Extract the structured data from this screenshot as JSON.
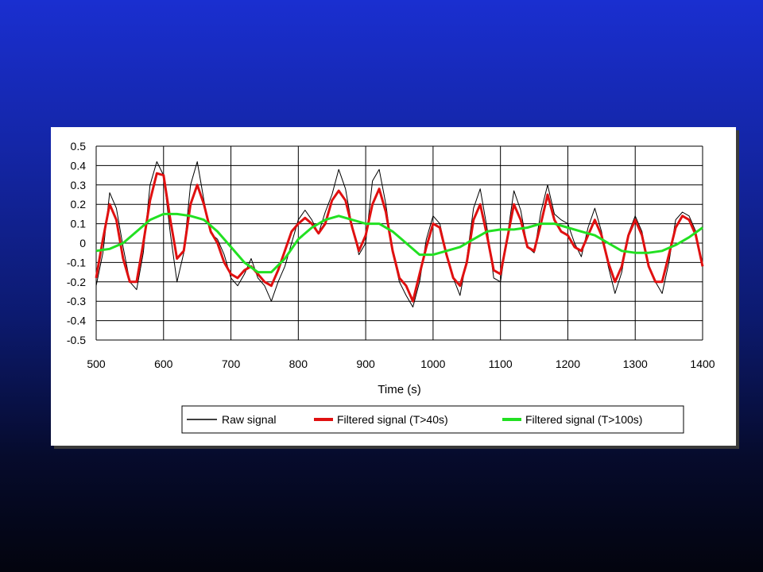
{
  "slide": {
    "background_top": "#1a2fd0",
    "background_bottom": "#03040e"
  },
  "chart_data": {
    "type": "line",
    "title": "",
    "xlabel": "Time (s)",
    "ylabel": "",
    "xlim": [
      500,
      1400
    ],
    "ylim": [
      -0.5,
      0.5
    ],
    "x_ticks": [
      500,
      600,
      700,
      800,
      900,
      1000,
      1100,
      1200,
      1300,
      1400
    ],
    "y_ticks": [
      0.5,
      0.4,
      0.3,
      0.2,
      0.1,
      0,
      -0.1,
      -0.2,
      -0.3,
      -0.4,
      -0.5
    ],
    "x_tick_labels": [
      "500",
      "600",
      "700",
      "800",
      "900",
      "1000",
      "1100",
      "1200",
      "1300",
      "1400"
    ],
    "y_tick_labels": [
      "0.5",
      "0.4",
      "0.3",
      "0.2",
      "0.1",
      "0",
      "-0.1",
      "-0.2",
      "-0.3",
      "-0.4",
      "-0.5"
    ],
    "grid": true,
    "legend_position": "bottom",
    "series": [
      {
        "name": "Raw signal",
        "color": "#000000",
        "x": [
          500,
          510,
          520,
          530,
          540,
          550,
          560,
          570,
          580,
          590,
          600,
          610,
          620,
          630,
          640,
          650,
          660,
          670,
          680,
          690,
          700,
          710,
          720,
          730,
          740,
          750,
          760,
          770,
          780,
          790,
          800,
          810,
          820,
          830,
          840,
          850,
          860,
          870,
          880,
          890,
          900,
          910,
          920,
          930,
          940,
          950,
          960,
          970,
          980,
          990,
          1000,
          1010,
          1020,
          1030,
          1040,
          1050,
          1060,
          1070,
          1080,
          1090,
          1100,
          1110,
          1120,
          1130,
          1140,
          1150,
          1160,
          1170,
          1180,
          1190,
          1200,
          1210,
          1220,
          1230,
          1240,
          1250,
          1260,
          1270,
          1280,
          1290,
          1300,
          1310,
          1320,
          1330,
          1340,
          1350,
          1360,
          1370,
          1380,
          1390,
          1400
        ],
        "values": [
          -0.22,
          -0.05,
          0.26,
          0.18,
          -0.02,
          -0.2,
          -0.24,
          -0.05,
          0.3,
          0.42,
          0.35,
          0.05,
          -0.2,
          -0.05,
          0.3,
          0.42,
          0.22,
          0.05,
          0.02,
          -0.06,
          -0.18,
          -0.22,
          -0.16,
          -0.08,
          -0.18,
          -0.22,
          -0.3,
          -0.2,
          -0.12,
          0.0,
          0.12,
          0.17,
          0.12,
          0.05,
          0.16,
          0.25,
          0.38,
          0.28,
          0.08,
          -0.06,
          0.0,
          0.32,
          0.38,
          0.2,
          -0.05,
          -0.2,
          -0.27,
          -0.33,
          -0.2,
          0.02,
          0.14,
          0.1,
          -0.05,
          -0.18,
          -0.27,
          -0.08,
          0.18,
          0.28,
          0.08,
          -0.18,
          -0.2,
          0.03,
          0.27,
          0.17,
          -0.02,
          -0.05,
          0.16,
          0.3,
          0.15,
          0.12,
          0.1,
          0.0,
          -0.07,
          0.08,
          0.18,
          0.06,
          -0.12,
          -0.26,
          -0.15,
          0.05,
          0.14,
          0.06,
          -0.12,
          -0.2,
          -0.26,
          -0.1,
          0.12,
          0.16,
          0.14,
          0.06,
          -0.12
        ]
      },
      {
        "name": "Filtered signal (T>40s)",
        "color": "#e01010",
        "x": [
          500,
          510,
          520,
          530,
          540,
          550,
          560,
          570,
          580,
          590,
          600,
          610,
          620,
          630,
          640,
          650,
          660,
          670,
          680,
          690,
          700,
          710,
          720,
          730,
          740,
          750,
          760,
          770,
          780,
          790,
          800,
          810,
          820,
          830,
          840,
          850,
          860,
          870,
          880,
          890,
          900,
          910,
          920,
          930,
          940,
          950,
          960,
          970,
          980,
          990,
          1000,
          1010,
          1020,
          1030,
          1040,
          1050,
          1060,
          1070,
          1080,
          1090,
          1100,
          1110,
          1120,
          1130,
          1140,
          1150,
          1160,
          1170,
          1180,
          1190,
          1200,
          1210,
          1220,
          1230,
          1240,
          1250,
          1260,
          1270,
          1280,
          1290,
          1300,
          1310,
          1320,
          1330,
          1340,
          1350,
          1360,
          1370,
          1380,
          1390,
          1400
        ],
        "values": [
          -0.18,
          0.02,
          0.2,
          0.12,
          -0.08,
          -0.2,
          -0.2,
          0.0,
          0.22,
          0.36,
          0.35,
          0.12,
          -0.08,
          -0.04,
          0.2,
          0.3,
          0.2,
          0.06,
          0.0,
          -0.1,
          -0.16,
          -0.18,
          -0.14,
          -0.12,
          -0.16,
          -0.2,
          -0.22,
          -0.14,
          -0.04,
          0.06,
          0.1,
          0.13,
          0.1,
          0.05,
          0.1,
          0.22,
          0.27,
          0.22,
          0.08,
          -0.04,
          0.04,
          0.2,
          0.28,
          0.16,
          -0.04,
          -0.18,
          -0.22,
          -0.3,
          -0.16,
          -0.02,
          0.1,
          0.08,
          -0.06,
          -0.18,
          -0.22,
          -0.1,
          0.12,
          0.2,
          0.04,
          -0.14,
          -0.16,
          0.02,
          0.2,
          0.12,
          -0.02,
          -0.04,
          0.1,
          0.25,
          0.12,
          0.06,
          0.04,
          -0.02,
          -0.04,
          0.04,
          0.12,
          0.04,
          -0.1,
          -0.2,
          -0.12,
          0.04,
          0.12,
          0.04,
          -0.12,
          -0.2,
          -0.2,
          -0.06,
          0.08,
          0.14,
          0.12,
          0.04,
          -0.12
        ]
      },
      {
        "name": "Filtered signal (T>100s)",
        "color": "#22e022",
        "x": [
          500,
          520,
          540,
          560,
          580,
          600,
          620,
          640,
          660,
          680,
          700,
          720,
          740,
          760,
          780,
          800,
          820,
          840,
          860,
          880,
          900,
          920,
          940,
          960,
          980,
          1000,
          1020,
          1040,
          1060,
          1080,
          1100,
          1120,
          1140,
          1160,
          1180,
          1200,
          1220,
          1240,
          1260,
          1280,
          1300,
          1320,
          1340,
          1360,
          1380,
          1400
        ],
        "values": [
          -0.04,
          -0.03,
          0.0,
          0.06,
          0.12,
          0.15,
          0.15,
          0.14,
          0.12,
          0.06,
          -0.02,
          -0.1,
          -0.15,
          -0.15,
          -0.08,
          0.02,
          0.08,
          0.12,
          0.14,
          0.12,
          0.1,
          0.1,
          0.06,
          0.0,
          -0.06,
          -0.06,
          -0.04,
          -0.02,
          0.02,
          0.06,
          0.07,
          0.07,
          0.08,
          0.1,
          0.1,
          0.08,
          0.06,
          0.04,
          0.0,
          -0.04,
          -0.05,
          -0.05,
          -0.04,
          -0.01,
          0.03,
          0.08
        ]
      }
    ]
  }
}
